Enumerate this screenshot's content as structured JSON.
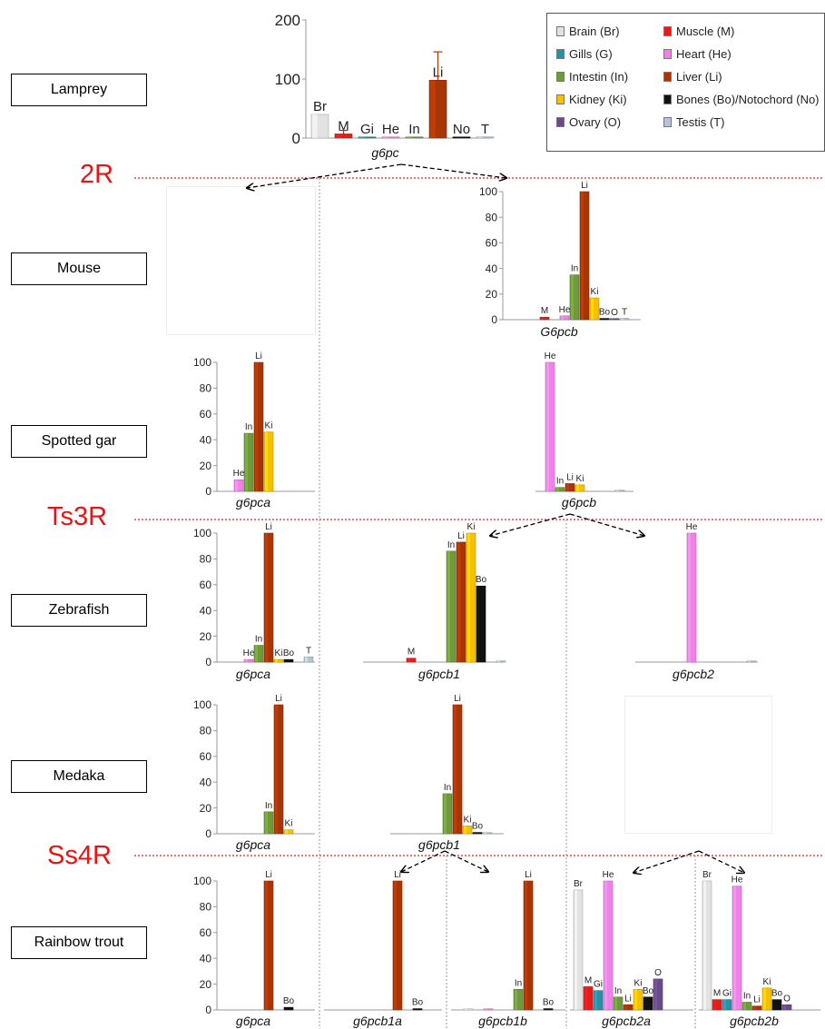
{
  "species": [
    {
      "name": "Lamprey"
    },
    {
      "name": "Mouse"
    },
    {
      "name": "Spotted gar"
    },
    {
      "name": "Zebrafish"
    },
    {
      "name": "Medaka"
    },
    {
      "name": "Rainbow trout"
    }
  ],
  "rounds": [
    {
      "name": "2R"
    },
    {
      "name": "Ts3R"
    },
    {
      "name": "Ss4R"
    }
  ],
  "legend": {
    "items": [
      {
        "code": "Br",
        "label": "Brain (Br)",
        "color": "#e2e2e2"
      },
      {
        "code": "M",
        "label": "Muscle (M)",
        "color": "#e41c1c"
      },
      {
        "code": "Gi",
        "label": "Gills (G)",
        "color": "#2a8fa8"
      },
      {
        "code": "He",
        "label": "Heart (He)",
        "color": "#ee82e6"
      },
      {
        "code": "In",
        "label": "Intestin (In)",
        "color": "#6f9a3c"
      },
      {
        "code": "Li",
        "label": "Liver (Li)",
        "color": "#a83505"
      },
      {
        "code": "Ki",
        "label": "Kidney (Ki)",
        "color": "#f6c000"
      },
      {
        "code": "Bo",
        "label": "Bones (Bo)/Notochord (No)",
        "color": "#111111"
      },
      {
        "code": "O",
        "label": "Ovary (O)",
        "color": "#6a4a8a"
      },
      {
        "code": "T",
        "label": "Testis (T)",
        "color": "#b7c4d8"
      }
    ]
  },
  "chart_data": [
    {
      "type": "bar",
      "title": "g6pc",
      "species": "Lamprey",
      "ylim": [
        0,
        200
      ],
      "yticks": [
        0,
        100,
        200
      ],
      "error_bars": {
        "Br": 0,
        "M": 6,
        "Li": 48
      },
      "bars": [
        {
          "tissue": "Br",
          "value": 40,
          "label": "Br"
        },
        {
          "tissue": "M",
          "value": 7,
          "label": "M"
        },
        {
          "tissue": "Gi",
          "value": 1,
          "label": "Gi"
        },
        {
          "tissue": "He",
          "value": 0.5,
          "label": "He"
        },
        {
          "tissue": "In",
          "value": 1,
          "label": "In"
        },
        {
          "tissue": "Li",
          "value": 98,
          "label": "Li"
        },
        {
          "tissue": "Bo",
          "value": 1,
          "label": "No"
        },
        {
          "tissue": "T",
          "value": 1,
          "label": "T"
        }
      ]
    },
    {
      "type": "bar",
      "title": "G6pcb",
      "species": "Mouse",
      "ylim": [
        0,
        100
      ],
      "yticks": [
        0,
        20,
        40,
        60,
        80,
        100
      ],
      "bars": [
        {
          "tissue": "M",
          "value": 2,
          "label": "M"
        },
        {
          "tissue": "He",
          "value": 3,
          "label": "He"
        },
        {
          "tissue": "In",
          "value": 35,
          "label": "In"
        },
        {
          "tissue": "Li",
          "value": 100,
          "label": "Li"
        },
        {
          "tissue": "Ki",
          "value": 17,
          "label": "Ki"
        },
        {
          "tissue": "Bo",
          "value": 1,
          "label": "Bo"
        },
        {
          "tissue": "O",
          "value": 0.5,
          "label": "O"
        },
        {
          "tissue": "T",
          "value": 1,
          "label": "T"
        }
      ]
    },
    {
      "type": "bar",
      "title": "g6pca",
      "species": "Spotted gar",
      "ylim": [
        0,
        100
      ],
      "yticks": [
        0,
        20,
        40,
        60,
        80,
        100
      ],
      "bars": [
        {
          "tissue": "He",
          "value": 9,
          "label": "He"
        },
        {
          "tissue": "In",
          "value": 45,
          "label": "In"
        },
        {
          "tissue": "Li",
          "value": 100,
          "label": "Li"
        },
        {
          "tissue": "Ki",
          "value": 46,
          "label": "Ki"
        }
      ]
    },
    {
      "type": "bar",
      "title": "g6pcb",
      "species": "Spotted gar",
      "ylim": [
        0,
        100
      ],
      "bars": [
        {
          "tissue": "He",
          "value": 100,
          "label": "He"
        },
        {
          "tissue": "In",
          "value": 3,
          "label": "In"
        },
        {
          "tissue": "Li",
          "value": 6,
          "label": "Li"
        },
        {
          "tissue": "Ki",
          "value": 5,
          "label": "Ki"
        },
        {
          "tissue": "T",
          "value": 0.5,
          "label": ""
        }
      ]
    },
    {
      "type": "bar",
      "title": "g6pca",
      "species": "Zebrafish",
      "ylim": [
        0,
        100
      ],
      "yticks": [
        0,
        20,
        40,
        60,
        80,
        100
      ],
      "bars": [
        {
          "tissue": "He",
          "value": 2,
          "label": "He"
        },
        {
          "tissue": "In",
          "value": 13,
          "label": "In"
        },
        {
          "tissue": "Li",
          "value": 100,
          "label": "Li"
        },
        {
          "tissue": "Ki",
          "value": 2,
          "label": "Ki"
        },
        {
          "tissue": "Bo",
          "value": 2,
          "label": "Bo"
        },
        {
          "tissue": "T",
          "value": 4,
          "label": "T"
        }
      ]
    },
    {
      "type": "bar",
      "title": "g6pcb1",
      "species": "Zebrafish",
      "ylim": [
        0,
        100
      ],
      "bars": [
        {
          "tissue": "M",
          "value": 3,
          "label": "M"
        },
        {
          "tissue": "In",
          "value": 86,
          "label": "In"
        },
        {
          "tissue": "Li",
          "value": 93,
          "label": "Li"
        },
        {
          "tissue": "Ki",
          "value": 100,
          "label": "Ki"
        },
        {
          "tissue": "Bo",
          "value": 59,
          "label": "Bo"
        },
        {
          "tissue": "T",
          "value": 0.5,
          "label": ""
        }
      ]
    },
    {
      "type": "bar",
      "title": "g6pcb2",
      "species": "Zebrafish",
      "ylim": [
        0,
        100
      ],
      "bars": [
        {
          "tissue": "He",
          "value": 100,
          "label": "He"
        },
        {
          "tissue": "T",
          "value": 0.5,
          "label": ""
        }
      ]
    },
    {
      "type": "bar",
      "title": "g6pca",
      "species": "Medaka",
      "ylim": [
        0,
        100
      ],
      "yticks": [
        0,
        20,
        40,
        60,
        80,
        100
      ],
      "bars": [
        {
          "tissue": "In",
          "value": 17,
          "label": "In"
        },
        {
          "tissue": "Li",
          "value": 100,
          "label": "Li"
        },
        {
          "tissue": "Ki",
          "value": 3,
          "label": "Ki"
        }
      ]
    },
    {
      "type": "bar",
      "title": "g6pcb1",
      "species": "Medaka",
      "ylim": [
        0,
        100
      ],
      "yticks": [
        0,
        20,
        40,
        60,
        80,
        100
      ],
      "bars": [
        {
          "tissue": "In",
          "value": 31,
          "label": "In"
        },
        {
          "tissue": "Li",
          "value": 100,
          "label": "Li"
        },
        {
          "tissue": "Ki",
          "value": 6,
          "label": "Ki"
        },
        {
          "tissue": "Bo",
          "value": 1,
          "label": "Bo"
        },
        {
          "tissue": "T",
          "value": 0.5,
          "label": ""
        }
      ]
    },
    {
      "type": "bar",
      "title": "g6pca",
      "species": "Rainbow trout",
      "ylim": [
        0,
        100
      ],
      "yticks": [
        0,
        20,
        40,
        60,
        80,
        100
      ],
      "bars": [
        {
          "tissue": "Li",
          "value": 100,
          "label": "Li"
        },
        {
          "tissue": "Bo",
          "value": 2,
          "label": "Bo"
        }
      ]
    },
    {
      "type": "bar",
      "title": "g6pcb1a",
      "species": "Rainbow trout",
      "ylim": [
        0,
        100
      ],
      "bars": [
        {
          "tissue": "Li",
          "value": 100,
          "label": "Li"
        },
        {
          "tissue": "Bo",
          "value": 1,
          "label": "Bo"
        }
      ]
    },
    {
      "type": "bar",
      "title": "g6pcb1b",
      "species": "Rainbow trout",
      "ylim": [
        0,
        100
      ],
      "bars": [
        {
          "tissue": "Br",
          "value": 0.5,
          "label": ""
        },
        {
          "tissue": "He",
          "value": 0.5,
          "label": ""
        },
        {
          "tissue": "In",
          "value": 16,
          "label": "In"
        },
        {
          "tissue": "Li",
          "value": 100,
          "label": "Li"
        },
        {
          "tissue": "Bo",
          "value": 1,
          "label": "Bo"
        }
      ]
    },
    {
      "type": "bar",
      "title": "g6pcb2a",
      "species": "Rainbow trout",
      "ylim": [
        0,
        100
      ],
      "bars": [
        {
          "tissue": "Br",
          "value": 93,
          "label": "Br"
        },
        {
          "tissue": "M",
          "value": 18,
          "label": "M"
        },
        {
          "tissue": "Gi",
          "value": 15,
          "label": "Gi"
        },
        {
          "tissue": "He",
          "value": 100,
          "label": "He"
        },
        {
          "tissue": "In",
          "value": 10,
          "label": "In"
        },
        {
          "tissue": "Li",
          "value": 4,
          "label": "Li"
        },
        {
          "tissue": "Ki",
          "value": 16,
          "label": "Ki"
        },
        {
          "tissue": "Bo",
          "value": 10,
          "label": "Bo"
        },
        {
          "tissue": "O",
          "value": 24,
          "label": "O"
        }
      ]
    },
    {
      "type": "bar",
      "title": "g6pcb2b",
      "species": "Rainbow trout",
      "ylim": [
        0,
        100
      ],
      "bars": [
        {
          "tissue": "Br",
          "value": 100,
          "label": "Br"
        },
        {
          "tissue": "M",
          "value": 8,
          "label": "M"
        },
        {
          "tissue": "Gi",
          "value": 8,
          "label": "Gi"
        },
        {
          "tissue": "He",
          "value": 96,
          "label": "He"
        },
        {
          "tissue": "In",
          "value": 6,
          "label": "In"
        },
        {
          "tissue": "Li",
          "value": 3,
          "label": "Li"
        },
        {
          "tissue": "Ki",
          "value": 17,
          "label": "Ki"
        },
        {
          "tissue": "Bo",
          "value": 8,
          "label": "Bo"
        },
        {
          "tissue": "O",
          "value": 4,
          "label": "O"
        }
      ]
    }
  ]
}
